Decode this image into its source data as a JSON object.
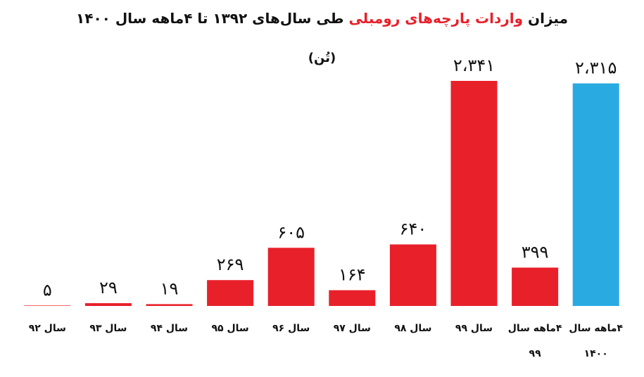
{
  "chart_data": {
    "type": "bar",
    "title": [
      "میزان",
      "واردات پارچه‌های رومبلی",
      "طی سال‌های ۱۳۹۲ تا ۴ماهه سال ۱۴۰۰"
    ],
    "subtitle": "(تُن)",
    "categories": [
      "سال ۹۲",
      "سال ۹۳",
      "سال ۹۴",
      "سال ۹۵",
      "سال ۹۶",
      "سال ۹۷",
      "سال ۹۸",
      "سال ۹۹",
      "۴ماهه سال ۹۹",
      "۴ماهه سال ۱۴۰۰"
    ],
    "values": [
      5,
      29,
      19,
      269,
      605,
      164,
      640,
      2341,
      399,
      2315
    ],
    "value_labels": [
      "۵",
      "۲۹",
      "۱۹",
      "۲۶۹",
      "۶۰۵",
      "۱۶۴",
      "۶۴۰",
      "۲،۳۴۱",
      "۳۹۹",
      "۲،۳۱۵"
    ],
    "colors": [
      "#e8202a",
      "#e8202a",
      "#e8202a",
      "#e8202a",
      "#e8202a",
      "#e8202a",
      "#e8202a",
      "#e8202a",
      "#e8202a",
      "#29abe2"
    ],
    "title_colors": [
      "#111111",
      "#e8202a",
      "#111111"
    ]
  }
}
